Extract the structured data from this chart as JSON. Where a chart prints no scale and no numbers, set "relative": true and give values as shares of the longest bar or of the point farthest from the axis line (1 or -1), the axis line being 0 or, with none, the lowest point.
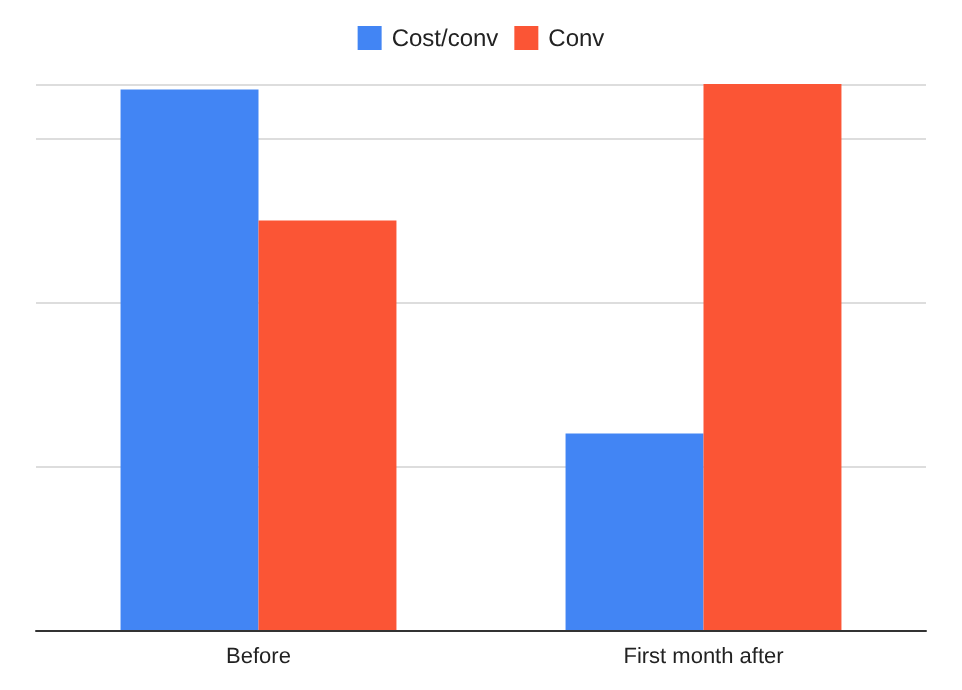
{
  "chart_data": {
    "type": "bar",
    "relative": true,
    "categories": [
      "Before",
      "First month after"
    ],
    "series": [
      {
        "name": "Cost/conv",
        "color": "#4285f4",
        "values": [
          0.99,
          0.36
        ]
      },
      {
        "name": "Conv",
        "color": "#fb5535",
        "values": [
          0.75,
          1
        ]
      }
    ],
    "grid": "y",
    "legend": "top"
  }
}
